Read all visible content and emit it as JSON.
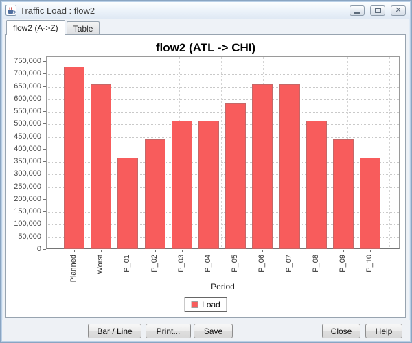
{
  "window": {
    "title": "Traffic Load : flow2",
    "app_icon": "java-coffee-cup",
    "controls": [
      "minimize",
      "maximize",
      "close"
    ]
  },
  "tabs": [
    {
      "label": "flow2 (A->Z)",
      "selected": true
    },
    {
      "label": "Table",
      "selected": false
    }
  ],
  "chart_data": {
    "type": "bar",
    "title": "flow2 (ATL -> CHI)",
    "categories": [
      "Planned",
      "Worst",
      "P_01",
      "P_02",
      "P_03",
      "P_04",
      "P_05",
      "P_06",
      "P_07",
      "P_08",
      "P_09",
      "P_10"
    ],
    "series": [
      {
        "name": "Load",
        "color": "#F85C5C",
        "values": [
          728000,
          657000,
          365000,
          437000,
          511000,
          511000,
          584000,
          657000,
          657000,
          511000,
          437000,
          365000
        ]
      }
    ],
    "xlabel": "Period",
    "ylabel": "",
    "ylim": [
      0,
      750000
    ],
    "ytick_step": 50000,
    "grid": true,
    "legend": {
      "position": "bottom",
      "entries": [
        {
          "label": "Load",
          "color": "#F85C5C"
        }
      ]
    }
  },
  "footer": {
    "bar_line_label": "Bar / Line",
    "print_label": "Print...",
    "save_label": "Save",
    "close_label": "Close",
    "help_label": "Help"
  },
  "colors": {
    "bar": "#F85C5C",
    "window_border": "#b9cfe6",
    "plot_outline": "#9a9a9a"
  }
}
